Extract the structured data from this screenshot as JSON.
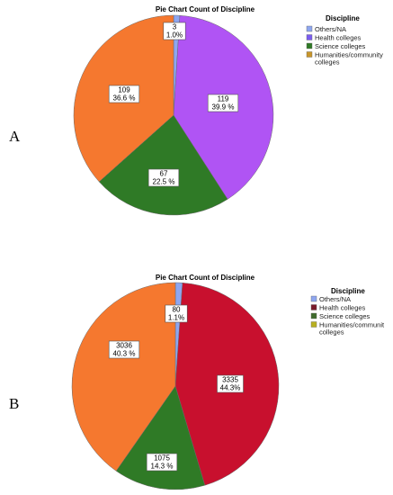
{
  "chart_data": [
    {
      "panel": "A",
      "type": "pie",
      "title": "Pie Chart Count of Discipline",
      "legend_title": "Discipline",
      "legend_position": "right",
      "slices": [
        {
          "category": "Others/NA",
          "count": "3",
          "percent": "1.0%",
          "value": 1.0,
          "color": "#8ea6f0"
        },
        {
          "category": "Health colleges",
          "count": "119",
          "percent": "39.9 %",
          "value": 39.9,
          "color": "#b054f4"
        },
        {
          "category": "Science colleges",
          "count": "67",
          "percent": "22.5 %",
          "value": 22.5,
          "color": "#2f7a26"
        },
        {
          "category": "Humanities/community colleges",
          "count": "109",
          "percent": "36.6 %",
          "value": 36.6,
          "color": "#f5782f"
        }
      ],
      "legend_items": [
        {
          "label": "Others/NA",
          "color": "#8ea6f0"
        },
        {
          "label": "Health colleges",
          "color": "#7a5cf0"
        },
        {
          "label": "Science colleges",
          "color": "#2f7a26"
        },
        {
          "label": "Humanities/community colleges",
          "color": "#c8952a"
        }
      ]
    },
    {
      "panel": "B",
      "type": "pie",
      "title": "Pie Chart Count of Discipline",
      "legend_title": "Discipline",
      "legend_position": "right",
      "slices": [
        {
          "category": "Others/NA",
          "count": "80",
          "percent": "1.1%",
          "value": 1.1,
          "color": "#8ea6f0"
        },
        {
          "category": "Health colleges",
          "count": "3335",
          "percent": "44.3%",
          "value": 44.3,
          "color": "#c8102e"
        },
        {
          "category": "Science colleges",
          "count": "1075",
          "percent": "14.3 %",
          "value": 14.3,
          "color": "#2f7a26"
        },
        {
          "category": "Humanities/community colleges",
          "count": "3036",
          "percent": "40.3 %",
          "value": 40.3,
          "color": "#f5782f"
        }
      ],
      "legend_items": [
        {
          "label": "Others/NA",
          "color": "#8ea6f0"
        },
        {
          "label": "Health colleges",
          "color": "#7a1a2a"
        },
        {
          "label": "Science colleges",
          "color": "#3f6b2c"
        },
        {
          "label": "Humanities/communit colleges",
          "color": "#b8b020"
        }
      ]
    }
  ]
}
